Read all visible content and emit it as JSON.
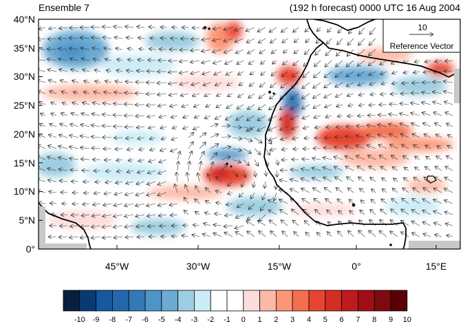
{
  "header": {
    "left_title": "Ensemble 7",
    "right_title": "(192 h forecast) 0000 UTC 16 Aug 2004"
  },
  "map": {
    "lat_labels": [
      "40°N",
      "35°N",
      "30°N",
      "25°N",
      "20°N",
      "15°N",
      "10°N",
      "5°N",
      "0°"
    ],
    "lon_labels": [
      "45°W",
      "30°W",
      "15°W",
      "0°",
      "15°E"
    ],
    "lon_range": [
      -58,
      20
    ],
    "lat_range": [
      0,
      40
    ]
  },
  "reference_vector": {
    "value": "10",
    "label": "Reference Vector"
  },
  "colorbar": {
    "labels": [
      "-10",
      "-9",
      "-8",
      "-7",
      "-6",
      "-5",
      "-4",
      "-3",
      "-2",
      "-1",
      "0",
      "1",
      "2",
      "3",
      "4",
      "5",
      "6",
      "7",
      "8",
      "9",
      "10"
    ],
    "colors": [
      "#08203f",
      "#0a3a75",
      "#1758a0",
      "#2467ad",
      "#3478b8",
      "#4d94c7",
      "#6cabd4",
      "#9ccde0",
      "#ccecf6",
      "#ffffff",
      "#ffffff",
      "#fddcdc",
      "#fcb9a5",
      "#fb9676",
      "#f36f50",
      "#e84530",
      "#d42d23",
      "#bf1a1d",
      "#a10e16",
      "#7c0a0f",
      "#5a0004"
    ]
  }
}
